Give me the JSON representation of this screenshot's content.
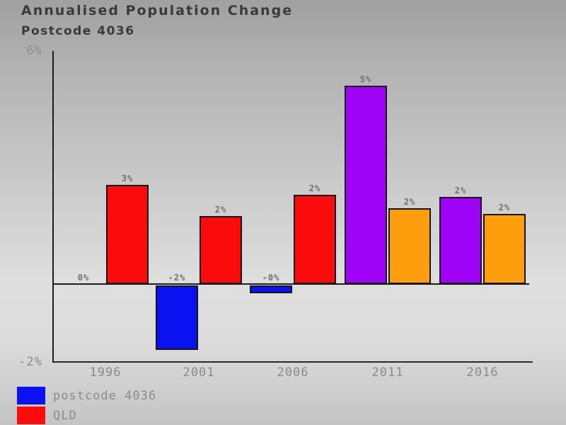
{
  "header": {
    "title": "Annualised Population Change",
    "subtitle": "Postcode 4036"
  },
  "chart_data": {
    "type": "bar",
    "title": "Annualised Population Change",
    "subtitle": "Postcode 4036",
    "categories": [
      "1996",
      "2001",
      "2006",
      "2011",
      "2016"
    ],
    "series": [
      {
        "name": "postcode 4036",
        "values": [
          0,
          -1.65,
          -0.2,
          5.1,
          2.25
        ],
        "labels": [
          "0%",
          "-2%",
          "-0%",
          "5%",
          "2%"
        ],
        "bar_colors": [
          "#0b12f2",
          "#0b12f2",
          "#0b12f2",
          "#a004f8",
          "#a004f8"
        ]
      },
      {
        "name": "QLD",
        "values": [
          2.55,
          1.75,
          2.3,
          1.95,
          1.8
        ],
        "labels": [
          "3%",
          "2%",
          "2%",
          "2%",
          "2%"
        ],
        "bar_colors": [
          "#fb0b0b",
          "#fb0b0b",
          "#fb0b0b",
          "#fe9e0d",
          "#fe9e0d"
        ]
      }
    ],
    "ylim": [
      -2,
      6
    ],
    "yticks": [
      {
        "value": 6,
        "label": "6%"
      },
      {
        "value": -2,
        "label": "-2%"
      }
    ],
    "grid": false,
    "legend_position": "bottom-left",
    "legend": [
      {
        "label": "postcode 4036",
        "color": "#0b12f2"
      },
      {
        "label": "QLD",
        "color": "#fb0b0b"
      }
    ],
    "colors": {
      "postcode_actual": "#0b12f2",
      "postcode_projected": "#a004f8",
      "qld_actual": "#fb0b0b",
      "qld_projected": "#fe9e0d",
      "axis": "#1c1c1c",
      "tick_text": "#8b8b8b",
      "title_text": "#3a3a3a"
    }
  }
}
